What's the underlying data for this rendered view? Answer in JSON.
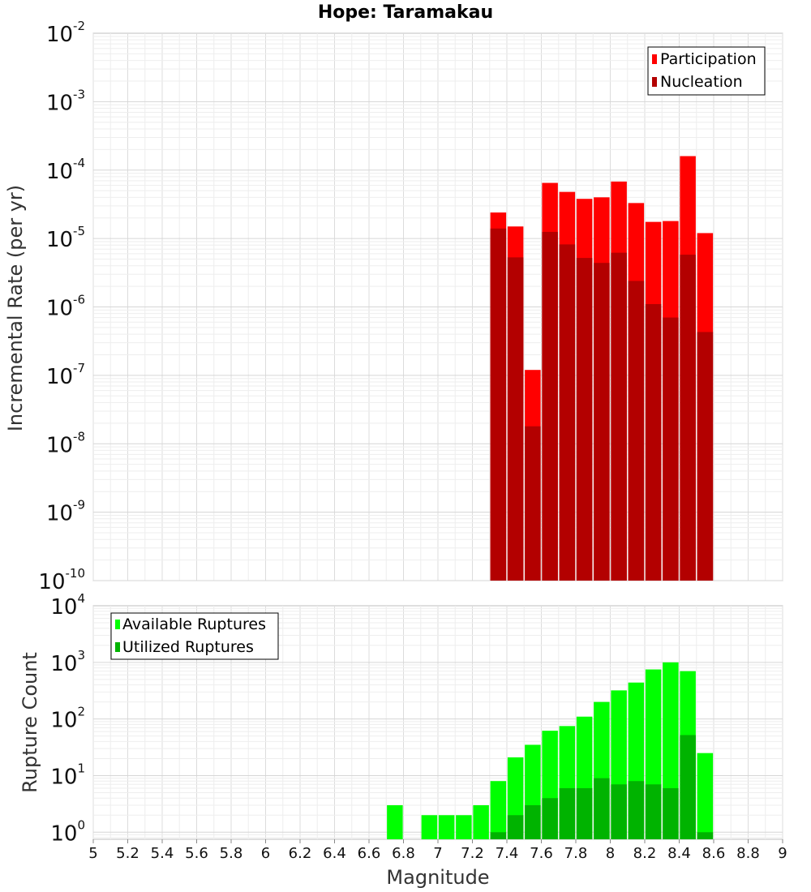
{
  "chart_data": [
    {
      "type": "bar",
      "title": "Hope: Taramakau",
      "xlabel": "",
      "ylabel": "Incremental Rate (per yr)",
      "yscale": "log",
      "xlim": [
        5,
        9
      ],
      "ylim": [
        1e-10,
        0.01
      ],
      "ytick_exponents": [
        "-10",
        "-9",
        "-8",
        "-7",
        "-6",
        "-5",
        "-4",
        "-3",
        "-2"
      ],
      "grid": true,
      "legend": "top-right",
      "x": [
        7.35,
        7.45,
        7.55,
        7.65,
        7.75,
        7.85,
        7.95,
        8.05,
        8.15,
        8.25,
        8.35,
        8.45,
        8.55
      ],
      "series": [
        {
          "name": "Participation",
          "color": "#ff0000",
          "values": [
            2.4e-05,
            1.5e-05,
            1.2e-07,
            6.5e-05,
            4.8e-05,
            3.8e-05,
            4e-05,
            6.8e-05,
            3.3e-05,
            1.75e-05,
            1.8e-05,
            0.00016,
            1.2e-05
          ]
        },
        {
          "name": "Nucleation",
          "color": "#b30000",
          "values": [
            1.4e-05,
            5.3e-06,
            1.8e-08,
            1.25e-05,
            8.2e-06,
            5.2e-06,
            4.4e-06,
            6.2e-06,
            2.4e-06,
            1.1e-06,
            7e-07,
            5.8e-06,
            4.3e-07
          ]
        }
      ]
    },
    {
      "type": "bar",
      "title": "",
      "xlabel": "Magnitude",
      "ylabel": "Rupture Count",
      "yscale": "log",
      "xlim": [
        5,
        9
      ],
      "ylim": [
        0.75,
        10000
      ],
      "ytick_exponents": [
        "0",
        "1",
        "2",
        "3",
        "4"
      ],
      "xticks": [
        "5",
        "5.2",
        "5.4",
        "5.6",
        "5.8",
        "6",
        "6.2",
        "6.4",
        "6.6",
        "6.8",
        "7",
        "7.2",
        "7.4",
        "7.6",
        "7.8",
        "8",
        "8.2",
        "8.4",
        "8.6",
        "8.8",
        "9"
      ],
      "grid": true,
      "legend": "top-left",
      "x": [
        6.75,
        6.95,
        7.05,
        7.15,
        7.25,
        7.35,
        7.45,
        7.55,
        7.65,
        7.75,
        7.85,
        7.95,
        8.05,
        8.15,
        8.25,
        8.35,
        8.45,
        8.55
      ],
      "series": [
        {
          "name": "Available Ruptures",
          "color": "#00ff00",
          "values": [
            3,
            2,
            2,
            2,
            3,
            8,
            21,
            35,
            62,
            75,
            110,
            200,
            320,
            440,
            750,
            1000,
            700,
            25
          ]
        },
        {
          "name": "Utilized Ruptures",
          "color": "#00b300",
          "values": [
            null,
            null,
            null,
            null,
            null,
            1,
            2,
            3,
            4,
            6,
            6,
            9,
            7,
            8,
            7,
            6,
            52,
            1
          ]
        }
      ]
    }
  ]
}
